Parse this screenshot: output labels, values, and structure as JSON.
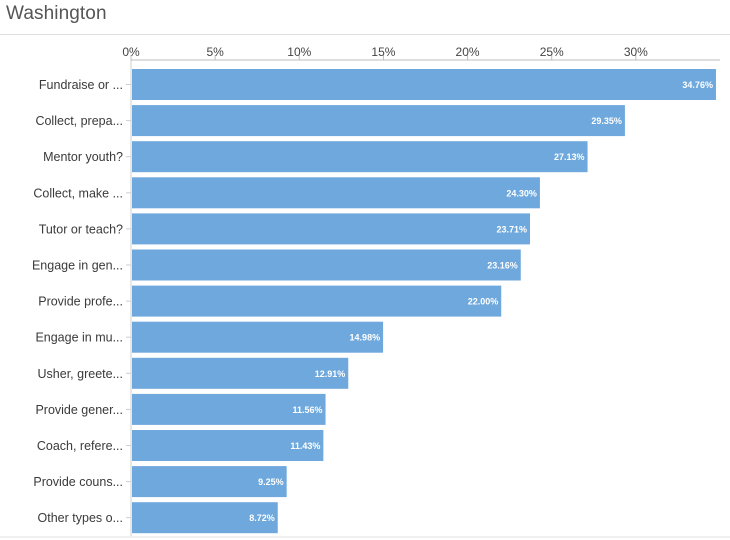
{
  "page": {
    "title": "Washington"
  },
  "chart_data": {
    "type": "bar",
    "orientation": "horizontal",
    "title": "Washington",
    "xlabel": "",
    "ylabel": "",
    "xlim": [
      0,
      35
    ],
    "x_ticks": [
      "0%",
      "5%",
      "10%",
      "15%",
      "20%",
      "25%",
      "30%"
    ],
    "x_tick_values": [
      0,
      5,
      10,
      15,
      20,
      25,
      30
    ],
    "grid": false,
    "bar_color": "#6fa8dc",
    "categories": [
      "Fundraise or ...",
      "Collect, prepa...",
      "Mentor youth?",
      "Collect, make ...",
      "Tutor or teach?",
      "Engage in gen...",
      "Provide profe...",
      "Engage in mu...",
      "Usher, greete...",
      "Provide gener...",
      "Coach, refere...",
      "Provide couns...",
      "Other types o..."
    ],
    "values": [
      34.76,
      29.35,
      27.13,
      24.3,
      23.71,
      23.16,
      22.0,
      14.98,
      12.91,
      11.56,
      11.43,
      9.25,
      8.72
    ],
    "value_labels": [
      "34.76%",
      "29.35%",
      "27.13%",
      "24.30%",
      "23.71%",
      "23.16%",
      "22.00%",
      "14.98%",
      "12.91%",
      "11.56%",
      "11.43%",
      "9.25%",
      "8.72%"
    ]
  }
}
